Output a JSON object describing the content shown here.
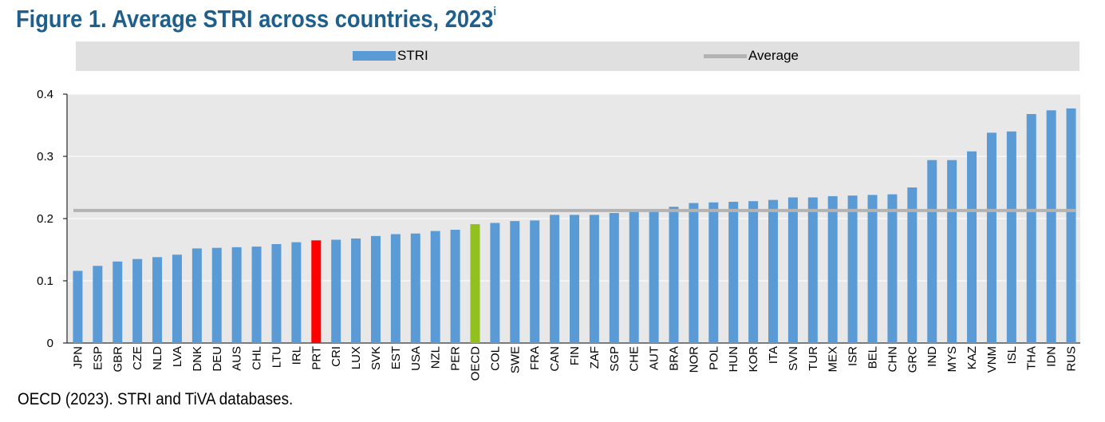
{
  "title": "Figure 1. Average STRI across countries, 2023",
  "title_superscript": "i",
  "footer": "OECD (2023). STRI and TiVA databases.",
  "colors": {
    "title": "#1f5f8b",
    "bar": "#5b9bd5",
    "highlight_prt": "#ff0000",
    "highlight_oecd": "#92c01f",
    "average_line": "#b3b3b3",
    "plot_bg": "#e8e8e8"
  },
  "chart_data": {
    "type": "bar",
    "title": "Figure 1. Average STRI across countries, 2023",
    "xlabel": "",
    "ylabel": "",
    "ylim": [
      0,
      0.4
    ],
    "yticks": [
      "0",
      "0.1",
      "0.2",
      "0.3",
      "0.4"
    ],
    "grid": true,
    "legend_position": "top",
    "categories": [
      "JPN",
      "ESP",
      "GBR",
      "CZE",
      "NLD",
      "LVA",
      "DNK",
      "DEU",
      "AUS",
      "CHL",
      "LTU",
      "IRL",
      "PRT",
      "CRI",
      "LUX",
      "SVK",
      "EST",
      "USA",
      "NZL",
      "PER",
      "OECD",
      "COL",
      "SWE",
      "FRA",
      "CAN",
      "FIN",
      "ZAF",
      "SGP",
      "CHE",
      "AUT",
      "BRA",
      "NOR",
      "POL",
      "HUN",
      "KOR",
      "ITA",
      "SVN",
      "TUR",
      "MEX",
      "ISR",
      "BEL",
      "CHN",
      "GRC",
      "IND",
      "MYS",
      "KAZ",
      "VNM",
      "ISL",
      "THA",
      "IDN",
      "RUS"
    ],
    "series": [
      {
        "name": "STRI",
        "values": [
          0.116,
          0.124,
          0.131,
          0.135,
          0.138,
          0.142,
          0.152,
          0.153,
          0.154,
          0.155,
          0.159,
          0.162,
          0.165,
          0.166,
          0.168,
          0.172,
          0.175,
          0.176,
          0.18,
          0.182,
          0.191,
          0.193,
          0.196,
          0.197,
          0.206,
          0.206,
          0.206,
          0.209,
          0.212,
          0.214,
          0.219,
          0.225,
          0.226,
          0.227,
          0.228,
          0.23,
          0.234,
          0.234,
          0.236,
          0.237,
          0.238,
          0.239,
          0.25,
          0.294,
          0.294,
          0.308,
          0.338,
          0.34,
          0.368,
          0.374,
          0.377
        ],
        "highlights": {
          "PRT": "#ff0000",
          "OECD": "#92c01f"
        }
      },
      {
        "name": "Average",
        "type": "line",
        "value": 0.213
      }
    ]
  }
}
